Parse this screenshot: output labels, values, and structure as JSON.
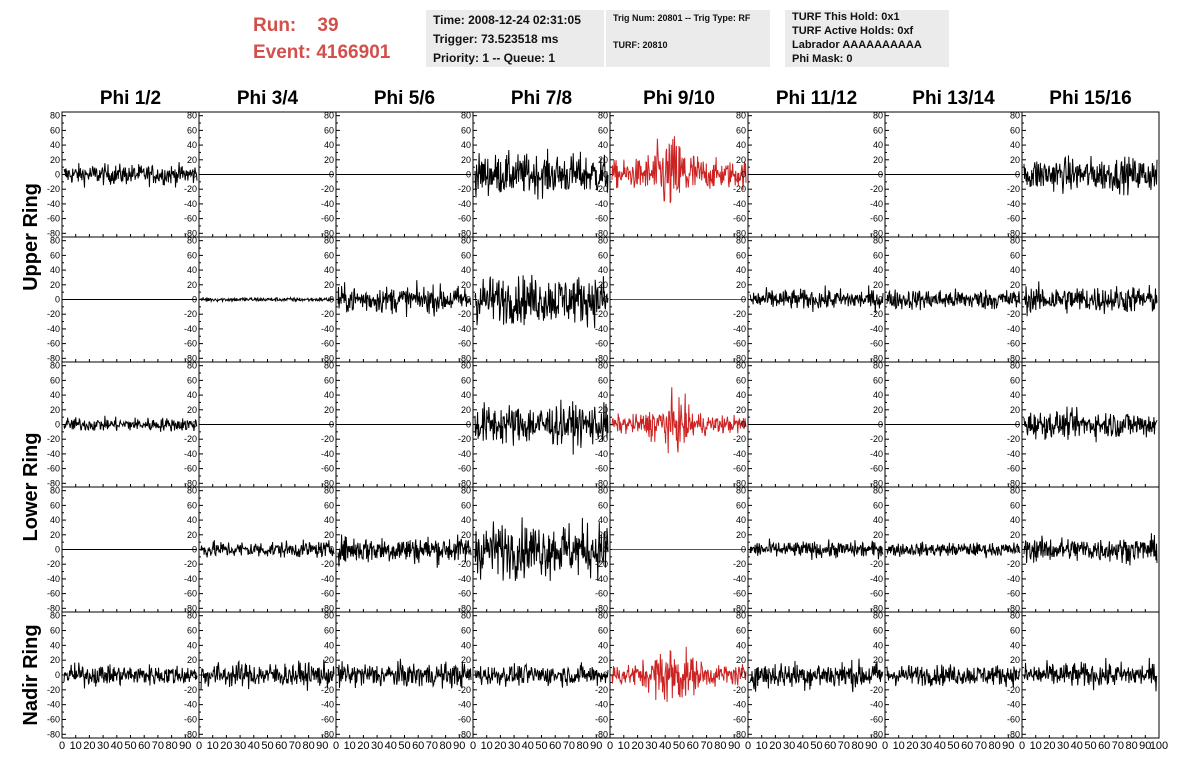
{
  "header": {
    "run_label": "Run:",
    "run_value": "39",
    "event_label": "Event:",
    "event_value": "4166901",
    "time": "Time: 2008-12-24 02:31:05",
    "trigger": "Trigger: 73.523518 ms",
    "priority": "Priority: 1 -- Queue: 1",
    "trig_num": "Trig Num: 20801 -- Trig Type: RF",
    "turf": "TURF: 20810",
    "turf_this_hold": "TURF This Hold: 0x1",
    "turf_active_holds": "TURF Active Holds: 0xf",
    "labrador": "Labrador AAAAAAAAAA",
    "phi_mask": "Phi Mask: 0"
  },
  "colors": {
    "run_text": "#d2504c",
    "trace_normal": "#000000",
    "trace_highlight": "#cc2222",
    "info_box_bg": "#ebebeb"
  },
  "chart_data": {
    "type": "line",
    "columns": [
      "Phi 1/2",
      "Phi 3/4",
      "Phi 5/6",
      "Phi 7/8",
      "Phi 9/10",
      "Phi 11/12",
      "Phi 13/14",
      "Phi 15/16"
    ],
    "row_groups": [
      "Upper Ring",
      "Lower Ring",
      "Nadir Ring"
    ],
    "ylim": [
      -85,
      85
    ],
    "y_ticks": [
      -80,
      -60,
      -40,
      -20,
      0,
      20,
      40,
      60,
      80
    ],
    "y_tick_labels": [
      "-80",
      "-60",
      "-40",
      "-20",
      "0",
      "20",
      "40",
      "60",
      "80"
    ],
    "xlim": [
      0,
      100
    ],
    "x_tick_labels": [
      "0",
      "10",
      "20",
      "30",
      "40",
      "50",
      "60",
      "70",
      "80",
      "90",
      "100"
    ],
    "highlight_column": "Phi 9/10",
    "panels": [
      {
        "row": 1,
        "amplitudes": [
          15,
          0,
          0,
          30,
          45,
          0,
          0,
          25
        ]
      },
      {
        "row": 2,
        "amplitudes": [
          0,
          3,
          20,
          35,
          0,
          15,
          15,
          20
        ]
      },
      {
        "row": 3,
        "amplitudes": [
          10,
          0,
          0,
          30,
          30,
          0,
          0,
          20
        ]
      },
      {
        "row": 4,
        "amplitudes": [
          0,
          12,
          20,
          40,
          0,
          12,
          10,
          18
        ]
      },
      {
        "row": 5,
        "amplitudes": [
          15,
          18,
          18,
          15,
          35,
          20,
          15,
          18
        ]
      }
    ]
  }
}
